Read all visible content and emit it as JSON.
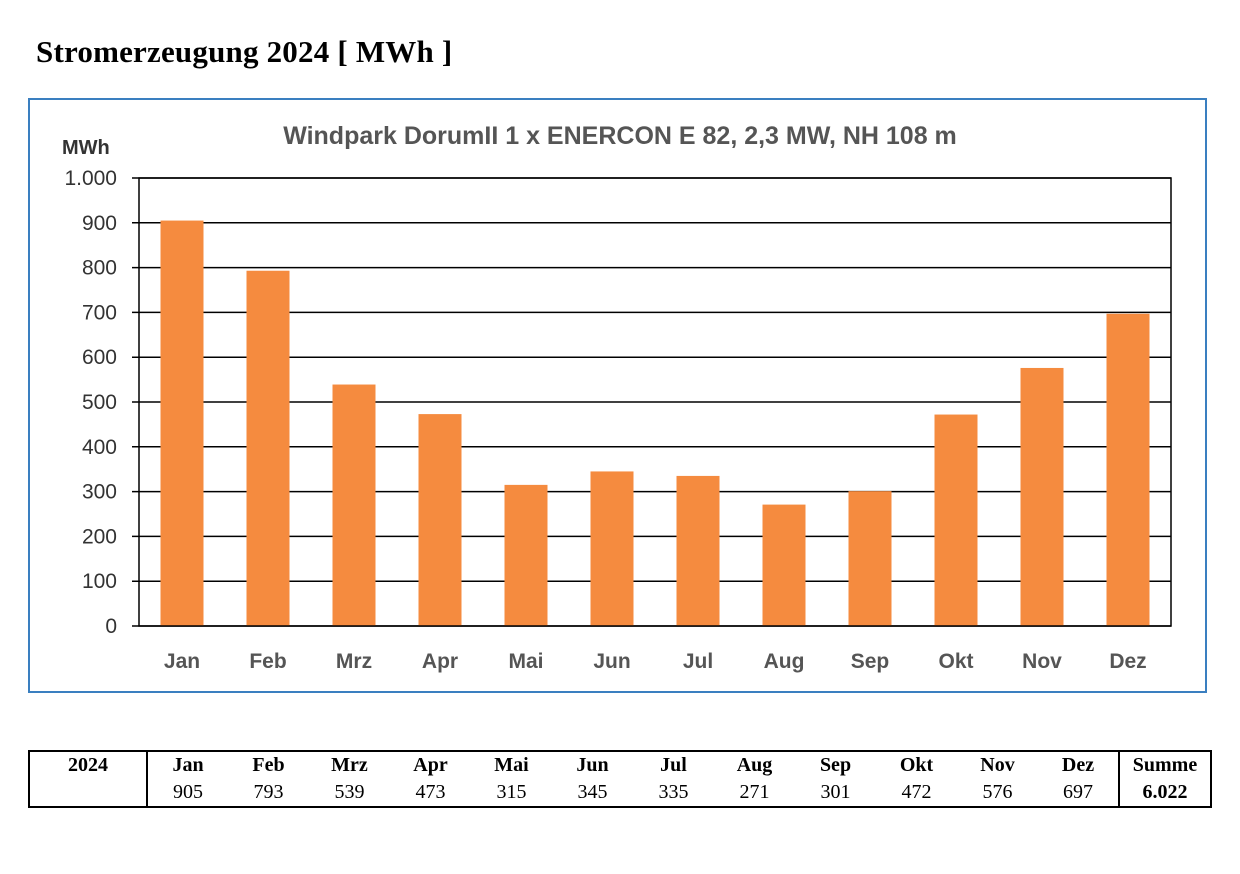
{
  "page": {
    "title": "Stromerzeugung 2024 [ MWh ]"
  },
  "chart_data": {
    "type": "bar",
    "title": "Windpark DorumII  1 x ENERCON E 82, 2,3 MW, NH 108 m",
    "ylabel": "MWh",
    "xlabel": "",
    "categories": [
      "Jan",
      "Feb",
      "Mrz",
      "Apr",
      "Mai",
      "Jun",
      "Jul",
      "Aug",
      "Sep",
      "Okt",
      "Nov",
      "Dez"
    ],
    "values": [
      905,
      793,
      539,
      473,
      315,
      345,
      335,
      271,
      301,
      472,
      576,
      697
    ],
    "ylim": [
      0,
      1000
    ],
    "yticks": [
      0,
      100,
      200,
      300,
      400,
      500,
      600,
      700,
      800,
      900,
      1000
    ],
    "ytick_labels": [
      "0",
      "100",
      "200",
      "300",
      "400",
      "500",
      "600",
      "700",
      "800",
      "900",
      "1.000"
    ],
    "grid": true,
    "legend": "none",
    "bar_color": "#f58b3f"
  },
  "table": {
    "year_label": "2024",
    "months": [
      "Jan",
      "Feb",
      "Mrz",
      "Apr",
      "Mai",
      "Jun",
      "Jul",
      "Aug",
      "Sep",
      "Okt",
      "Nov",
      "Dez"
    ],
    "values": [
      "905",
      "793",
      "539",
      "473",
      "315",
      "345",
      "335",
      "271",
      "301",
      "472",
      "576",
      "697"
    ],
    "sum_label": "Summe",
    "sum_value": "6.022"
  }
}
